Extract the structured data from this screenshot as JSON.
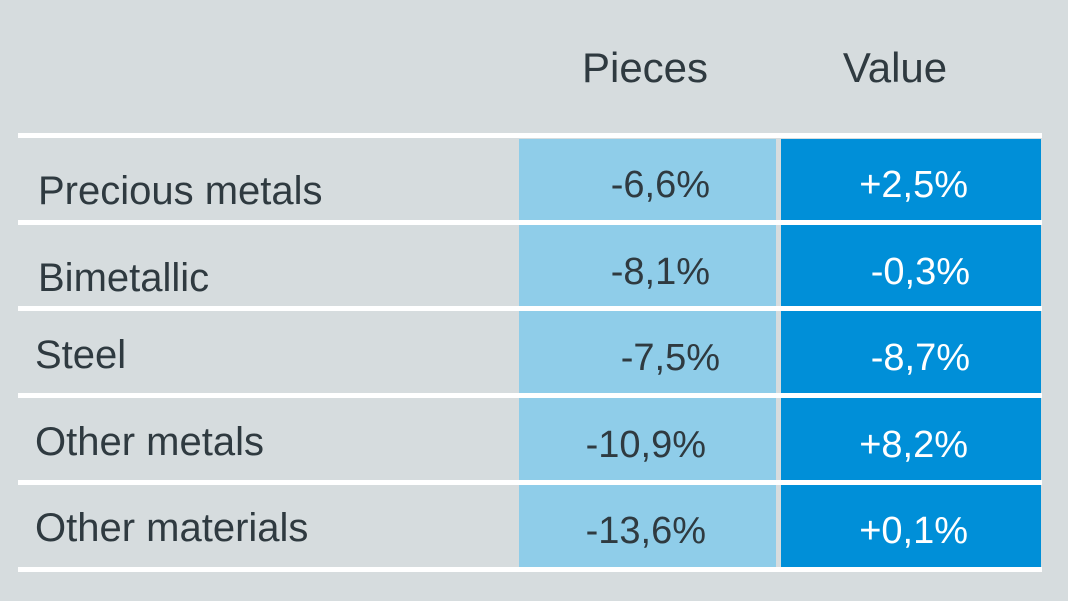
{
  "table": {
    "columns": {
      "pieces": "Pieces",
      "value": "Value"
    },
    "rows": [
      {
        "label": "Precious metals",
        "pieces": "-6,6%",
        "value": "+2,5%"
      },
      {
        "label": "Bimetallic",
        "pieces": "-8,1%",
        "value": "-0,3%"
      },
      {
        "label": "Steel",
        "pieces": "-7,5%",
        "value": "-8,7%"
      },
      {
        "label": "Other metals",
        "pieces": "-10,9%",
        "value": "+8,2%"
      },
      {
        "label": "Other materials",
        "pieces": "-13,6%",
        "value": "+0,1%"
      }
    ]
  },
  "colors": {
    "background": "#d6dcde",
    "pieces_column": "#8fcde9",
    "value_column": "#008fd8",
    "text_dark": "#2f3a40",
    "text_light": "#ffffff",
    "divider": "#ffffff"
  }
}
